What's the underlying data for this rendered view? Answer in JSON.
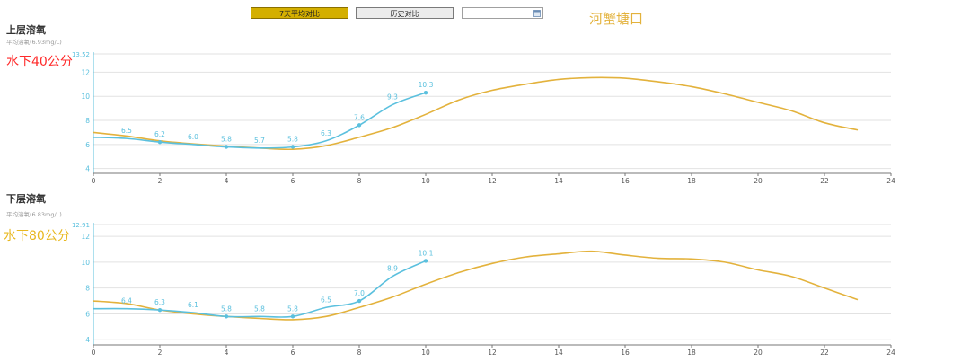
{
  "header": {
    "week_button": "7天平均对比",
    "history_button": "历史对比",
    "date_value": "",
    "pond_name": "河蟹塘口"
  },
  "colors": {
    "today": "#5bc0de",
    "avg": "#e3b23c",
    "axis": "#5bc0de",
    "button_active": "#d4af00",
    "upper_depth_label": "#ff2a2a",
    "lower_depth_label": "#e8b820"
  },
  "chart_data": [
    {
      "type": "line",
      "title": "上层溶氧",
      "subtitle": "平均溶氧(6.93mg/L)",
      "side_label": "水下40公分",
      "ylim": [
        3.6,
        13.52
      ],
      "ymax_label": "13.52",
      "yticks": [
        4,
        6,
        8,
        10,
        12
      ],
      "xlim": [
        0,
        24
      ],
      "xticks": [
        0,
        2,
        4,
        6,
        8,
        10,
        12,
        14,
        16,
        18,
        20,
        22,
        24
      ],
      "grid": true,
      "series": [
        {
          "x": [
            0,
            1,
            2,
            3,
            4,
            5,
            6,
            7,
            8,
            9,
            10
          ],
          "values": [
            6.6,
            6.5,
            6.2,
            6.0,
            5.8,
            5.7,
            5.8,
            6.3,
            7.6,
            9.3,
            10.3
          ],
          "labels": [
            "",
            "6.5",
            "6.2",
            "6.0",
            "5.8",
            "5.7",
            "5.8",
            "6.3",
            "7.6",
            "9.3",
            "10.3"
          ]
        },
        {
          "x": [
            0,
            1,
            2,
            3,
            4,
            5,
            6,
            7,
            8,
            9,
            10,
            11,
            12,
            13,
            14,
            15,
            16,
            17,
            18,
            19,
            20,
            21,
            22,
            23
          ],
          "values": [
            7.0,
            6.7,
            6.3,
            6.05,
            5.85,
            5.7,
            5.6,
            5.9,
            6.6,
            7.4,
            8.5,
            9.7,
            10.5,
            11.0,
            11.4,
            11.55,
            11.5,
            11.2,
            10.8,
            10.2,
            9.5,
            8.8,
            7.8,
            7.2
          ]
        }
      ]
    },
    {
      "type": "line",
      "title": "下层溶氧",
      "subtitle": "平均溶氧(6.83mg/L)",
      "side_label": "水下80公分",
      "ylim": [
        3.6,
        12.91
      ],
      "ymax_label": "12.91",
      "yticks": [
        4,
        6,
        8,
        10,
        12
      ],
      "xlim": [
        0,
        24
      ],
      "xticks": [
        0,
        2,
        4,
        6,
        8,
        10,
        12,
        14,
        16,
        18,
        20,
        22,
        24
      ],
      "grid": true,
      "series": [
        {
          "x": [
            0,
            1,
            2,
            3,
            4,
            5,
            6,
            7,
            8,
            9,
            10
          ],
          "values": [
            6.4,
            6.4,
            6.3,
            6.1,
            5.8,
            5.8,
            5.8,
            6.5,
            7.0,
            8.9,
            10.1
          ],
          "labels": [
            "",
            "6.4",
            "6.3",
            "6.1",
            "5.8",
            "5.8",
            "5.8",
            "6.5",
            "7.0",
            "8.9",
            "10.1"
          ]
        },
        {
          "x": [
            0,
            1,
            2,
            3,
            4,
            5,
            6,
            7,
            8,
            9,
            10,
            11,
            12,
            13,
            14,
            15,
            16,
            17,
            18,
            19,
            20,
            21,
            22,
            23
          ],
          "values": [
            7.0,
            6.8,
            6.3,
            6.0,
            5.8,
            5.65,
            5.55,
            5.8,
            6.5,
            7.3,
            8.3,
            9.2,
            9.9,
            10.4,
            10.65,
            10.85,
            10.55,
            10.3,
            10.25,
            10.0,
            9.4,
            8.9,
            8.0,
            7.1
          ]
        }
      ]
    }
  ]
}
